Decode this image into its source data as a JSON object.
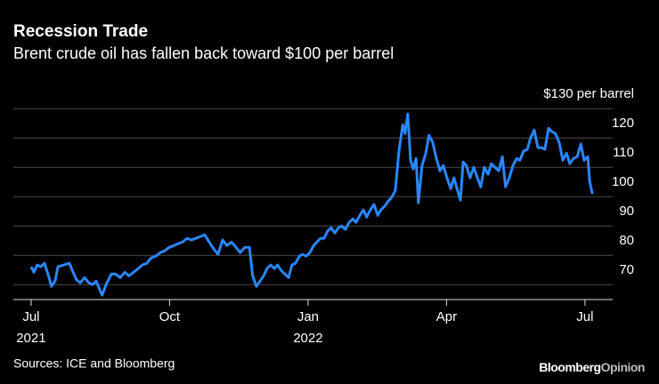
{
  "chart_data": {
    "type": "line",
    "title": "Recession Trade",
    "subtitle": "Brent crude oil has fallen back toward $100 per barrel",
    "source": "Sources: ICE and Bloomberg",
    "logo": {
      "main": "Bloomberg",
      "accent": "Opinion"
    },
    "xlim": [
      -0.5,
      12.6
    ],
    "xticks": [
      {
        "value": 0,
        "label": "Jul",
        "year": "2021"
      },
      {
        "value": 3,
        "label": "Oct"
      },
      {
        "value": 6,
        "label": "Jan",
        "year": "2022"
      },
      {
        "value": 9,
        "label": "Apr"
      },
      {
        "value": 12,
        "label": "Jul"
      }
    ],
    "ylim": [
      64,
      134
    ],
    "yticks": [
      {
        "value": 130,
        "label": "$130 per barrel"
      },
      120,
      110,
      100,
      90,
      80,
      70
    ],
    "grid": true,
    "x": [
      0,
      0.06,
      0.13,
      0.21,
      0.29,
      0.39,
      0.44,
      0.52,
      0.58,
      0.71,
      0.83,
      0.91,
      0.98,
      1.06,
      1.16,
      1.25,
      1.33,
      1.41,
      1.49,
      1.54,
      1.64,
      1.74,
      1.83,
      1.93,
      2.03,
      2.12,
      2.22,
      2.32,
      2.41,
      2.51,
      2.6,
      2.7,
      2.8,
      2.89,
      2.99,
      3.09,
      3.18,
      3.28,
      3.38,
      3.47,
      3.57,
      3.67,
      3.76,
      3.86,
      3.96,
      4.05,
      4.15,
      4.24,
      4.34,
      4.44,
      4.53,
      4.63,
      4.73,
      4.8,
      4.88,
      4.96,
      5.04,
      5.11,
      5.19,
      5.27,
      5.34,
      5.42,
      5.5,
      5.58,
      5.65,
      5.73,
      5.81,
      5.88,
      5.96,
      6.04,
      6.12,
      6.19,
      6.27,
      6.35,
      6.42,
      6.5,
      6.58,
      6.66,
      6.73,
      6.81,
      6.89,
      6.97,
      7.04,
      7.12,
      7.2,
      7.27,
      7.35,
      7.43,
      7.51,
      7.58,
      7.66,
      7.74,
      7.81,
      7.89,
      7.97,
      8.05,
      8.1,
      8.16,
      8.22,
      8.28,
      8.34,
      8.39,
      8.47,
      8.55,
      8.62,
      8.7,
      8.78,
      8.86,
      8.93,
      9.01,
      9.09,
      9.16,
      9.24,
      9.3,
      9.36,
      9.43,
      9.51,
      9.59,
      9.67,
      9.74,
      9.82,
      9.9,
      9.97,
      10.05,
      10.13,
      10.21,
      10.28,
      10.36,
      10.44,
      10.52,
      10.59,
      10.67,
      10.75,
      10.82,
      10.9,
      10.98,
      11.06,
      11.13,
      11.21,
      11.29,
      11.36,
      11.44,
      11.52,
      11.6,
      11.67,
      11.75,
      11.83,
      11.91,
      11.98,
      12.06,
      12.1,
      12.16
    ],
    "series": [
      {
        "color": "#2a86ff",
        "values": [
          76.1,
          74.2,
          76.7,
          76.1,
          77.3,
          72.4,
          69.4,
          71.2,
          76.1,
          76.7,
          77.3,
          74.2,
          71.8,
          70.6,
          72.4,
          70.6,
          70.0,
          71.2,
          68.2,
          66.4,
          70.6,
          73.6,
          73.6,
          72.4,
          74.2,
          73.0,
          74.2,
          75.5,
          76.7,
          77.3,
          79.1,
          79.7,
          80.9,
          81.5,
          82.7,
          83.3,
          83.9,
          84.5,
          85.8,
          85.2,
          85.8,
          86.4,
          87.0,
          84.5,
          82.1,
          80.3,
          85.2,
          83.3,
          84.5,
          82.7,
          80.9,
          82.7,
          82.7,
          73.0,
          69.4,
          71.2,
          73.0,
          75.5,
          76.7,
          75.5,
          76.7,
          74.8,
          73.6,
          72.4,
          76.7,
          77.3,
          79.7,
          80.3,
          79.7,
          80.9,
          83.3,
          84.5,
          85.8,
          85.8,
          88.2,
          89.4,
          87.6,
          89.4,
          90.0,
          88.8,
          91.2,
          92.4,
          91.2,
          93.6,
          95.5,
          93.0,
          95.5,
          97.3,
          93.6,
          95.5,
          96.7,
          98.5,
          99.7,
          102.1,
          115.5,
          124.5,
          121.5,
          128.2,
          112.4,
          109.4,
          113.0,
          97.9,
          110.6,
          114.8,
          120.9,
          118.5,
          113.0,
          108.8,
          110.6,
          106.4,
          102.7,
          106.4,
          102.1,
          98.8,
          111.8,
          110.6,
          106.4,
          110.0,
          106.4,
          103.3,
          110.0,
          107.6,
          111.2,
          110.0,
          108.8,
          113.6,
          103.3,
          106.4,
          110.6,
          113.0,
          112.4,
          115.5,
          116.1,
          120.0,
          122.7,
          116.7,
          116.7,
          116.1,
          123.3,
          122.1,
          121.5,
          118.5,
          112.4,
          114.8,
          111.2,
          113.0,
          113.6,
          117.9,
          112.4,
          113.6,
          105.2,
          100.9
        ]
      }
    ]
  }
}
